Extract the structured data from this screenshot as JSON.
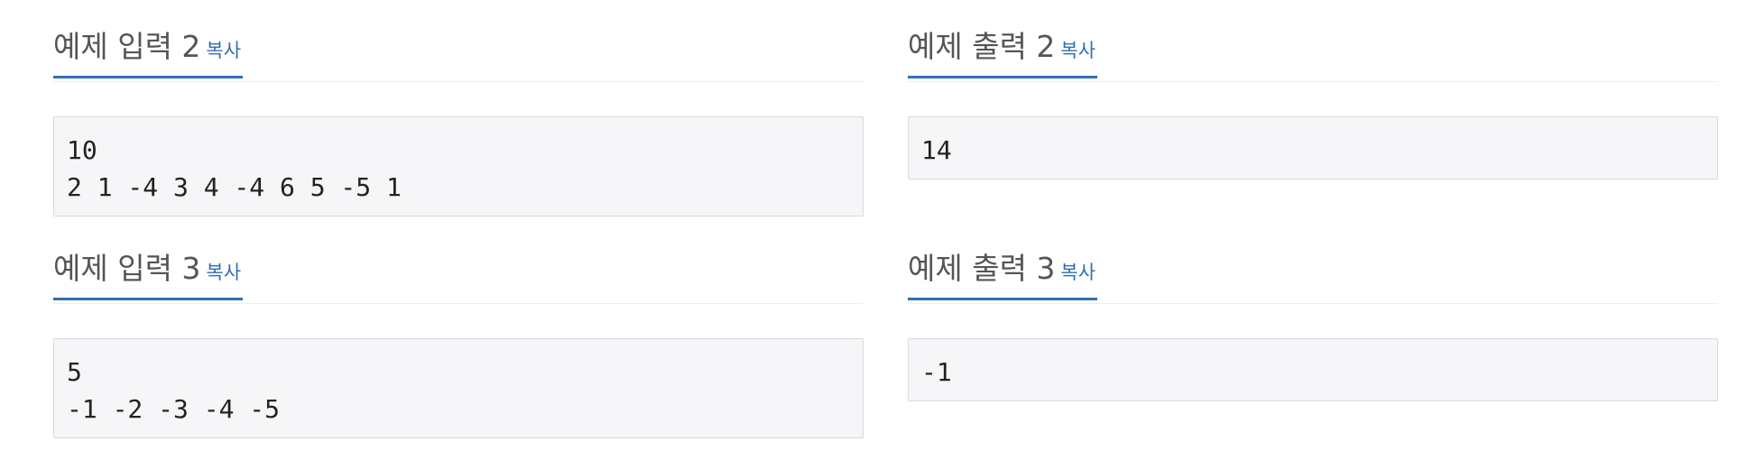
{
  "copy_label": "복사",
  "samples": {
    "input2": {
      "title": "예제 입력 2",
      "content": "10\n2 1 -4 3 4 -4 6 5 -5 1"
    },
    "output2": {
      "title": "예제 출력 2",
      "content": "14"
    },
    "input3": {
      "title": "예제 입력 3",
      "content": "5\n-1 -2 -3 -4 -5"
    },
    "output3": {
      "title": "예제 출력 3",
      "content": "-1"
    }
  },
  "colors": {
    "accent": "#2f6fb8",
    "sample_background": "#f6f6f8",
    "sample_border": "#d9d9de"
  }
}
